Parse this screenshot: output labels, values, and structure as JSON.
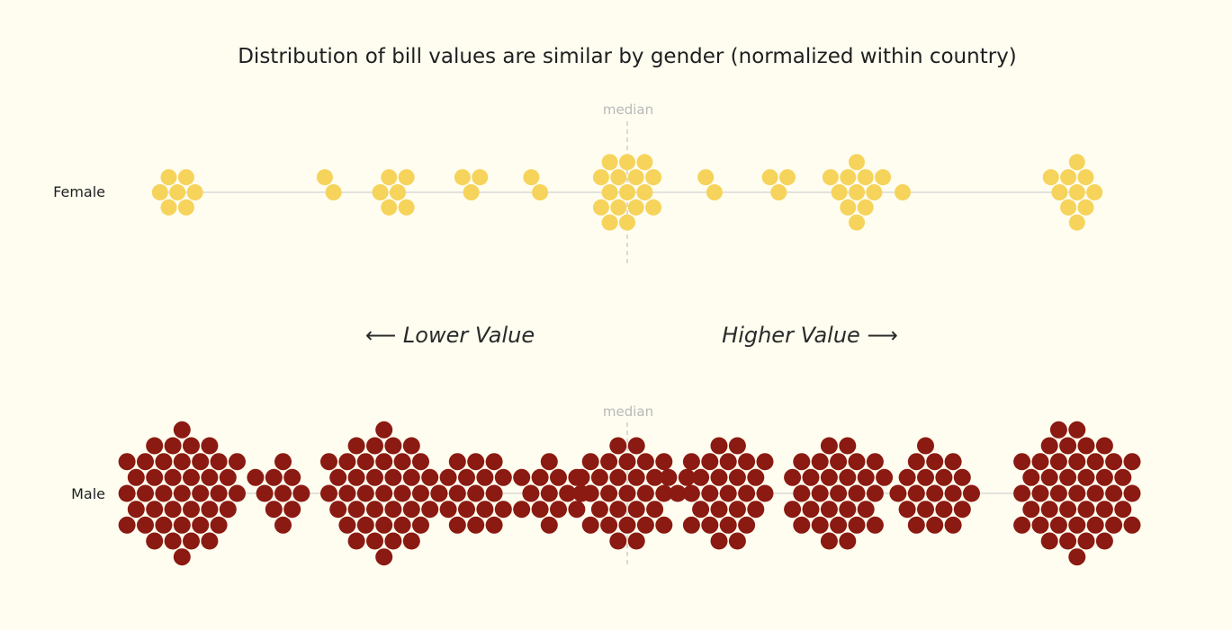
{
  "chart_data": {
    "type": "scatter",
    "title": "Distribution of bill values are similar by gender (normalized within country)",
    "xlabel": "",
    "ylabel": "",
    "median_label": "median",
    "lower_label": "⟵ Lower Value",
    "higher_label": "Higher Value ⟶",
    "colors": {
      "Female": "#f6d35b",
      "Male": "#8b1a12"
    },
    "series": [
      {
        "name": "Female",
        "bins": [
          {
            "x": -0.98,
            "count": 7
          },
          {
            "x": -0.64,
            "count": 2
          },
          {
            "x": -0.5,
            "count": 6
          },
          {
            "x": -0.34,
            "count": 3
          },
          {
            "x": -0.19,
            "count": 2
          },
          {
            "x": 0.0,
            "count": 16
          },
          {
            "x": 0.19,
            "count": 2
          },
          {
            "x": 0.33,
            "count": 3
          },
          {
            "x": 0.5,
            "count": 11
          },
          {
            "x": 0.6,
            "count": 1
          },
          {
            "x": 0.98,
            "count": 10
          }
        ]
      },
      {
        "name": "Male",
        "bins": [
          {
            "x": -0.97,
            "count": 42
          },
          {
            "x": -0.75,
            "count": 10
          },
          {
            "x": -0.53,
            "count": 40
          },
          {
            "x": -0.33,
            "count": 18
          },
          {
            "x": -0.17,
            "count": 13
          },
          {
            "x": -0.1,
            "count": 1
          },
          {
            "x": 0.0,
            "count": 28
          },
          {
            "x": 0.11,
            "count": 3
          },
          {
            "x": 0.22,
            "count": 26
          },
          {
            "x": 0.46,
            "count": 30
          },
          {
            "x": 0.67,
            "count": 20
          },
          {
            "x": 0.98,
            "count": 44
          }
        ]
      }
    ]
  }
}
